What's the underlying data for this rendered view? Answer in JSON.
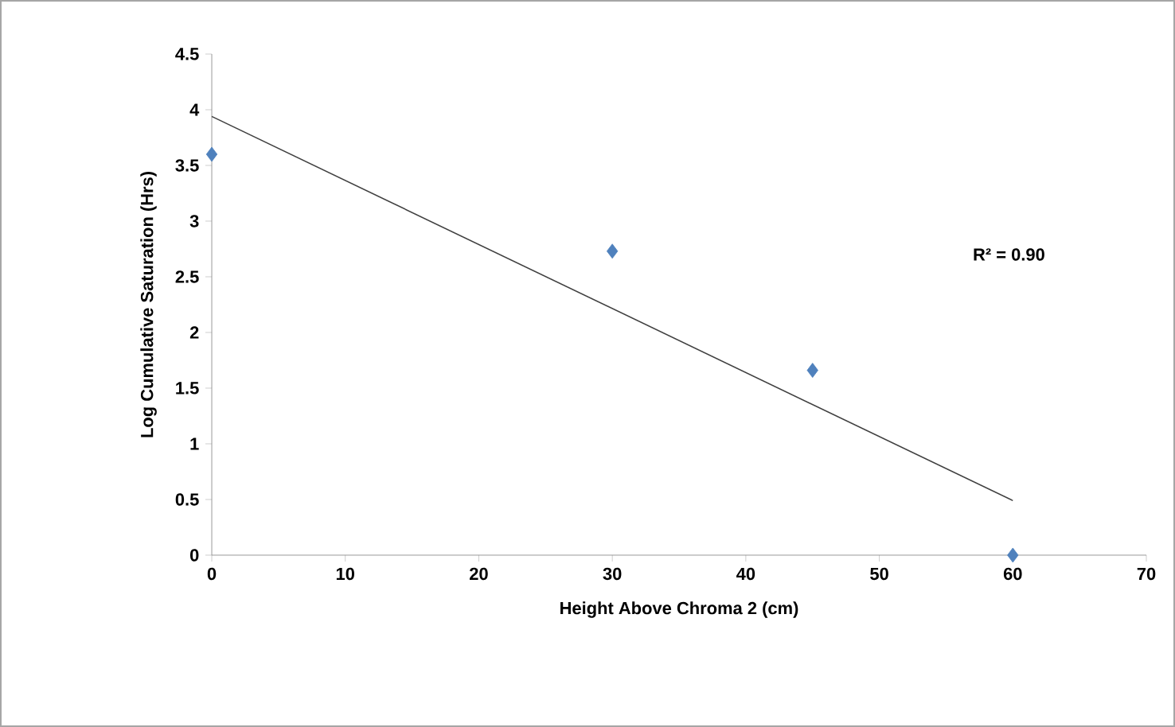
{
  "chart_data": {
    "type": "scatter",
    "xlabel": "Height Above Chroma 2 (cm)",
    "ylabel": "Log Cumulative Saturation (Hrs)",
    "xlim": [
      0,
      70
    ],
    "xticks": [
      0,
      10,
      20,
      30,
      40,
      50,
      60,
      70
    ],
    "ylim": [
      0,
      4.5
    ],
    "yticks": [
      0,
      0.5,
      1,
      1.5,
      2,
      2.5,
      3,
      3.5,
      4,
      4.5
    ],
    "series": [
      {
        "color": "#4f81bd",
        "x": [
          0,
          30,
          45,
          60
        ],
        "values": [
          3.6,
          2.73,
          1.66,
          0
        ]
      },
      {
        "type": "line",
        "marker": "none",
        "color": "#404040",
        "x": [
          0,
          60
        ],
        "values": [
          3.94,
          0.49
        ]
      }
    ],
    "marker": "diamond",
    "grid": false,
    "annotations": [
      "R² = 0.90"
    ]
  }
}
